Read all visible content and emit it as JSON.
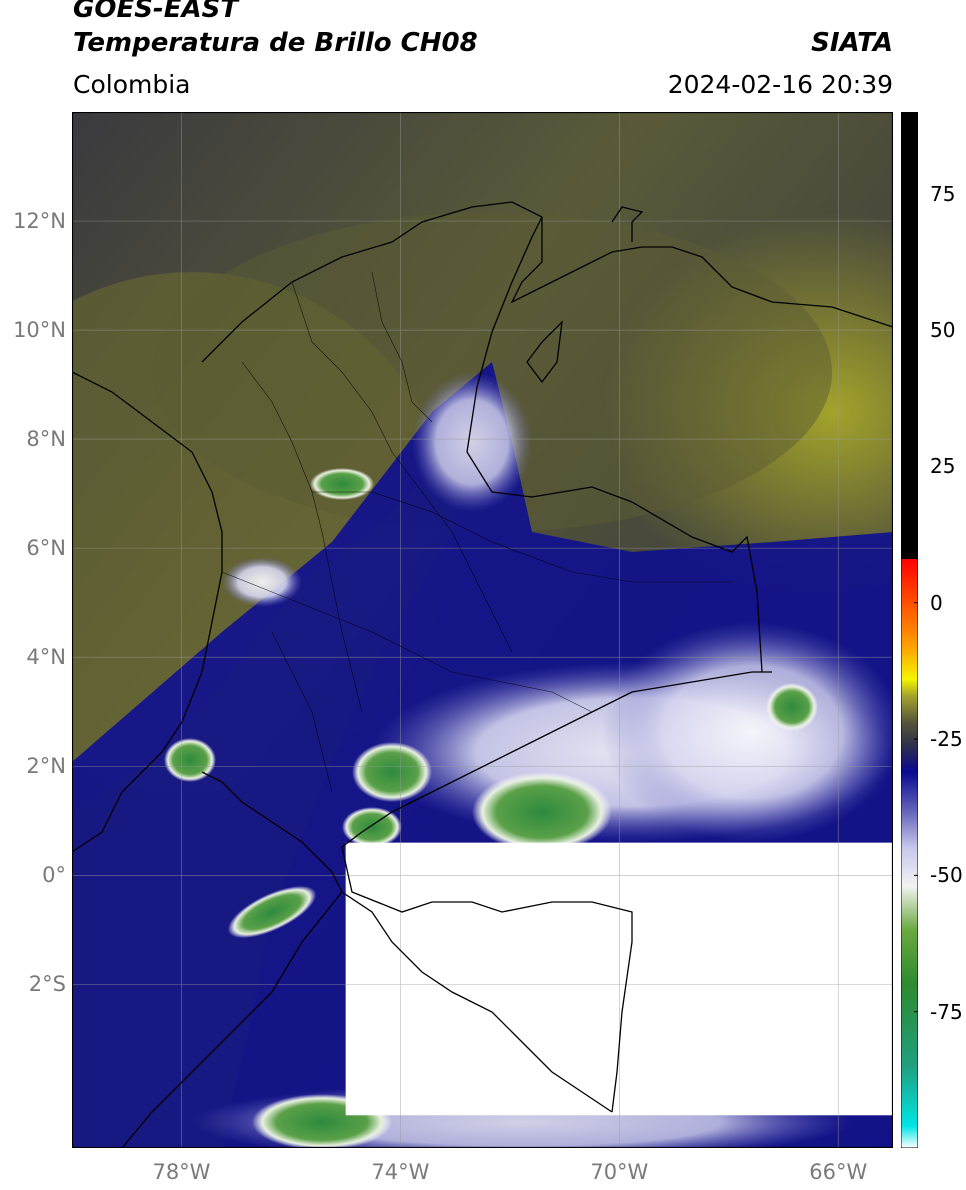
{
  "header": {
    "satellite": "GOES-EAST",
    "product": "Temperatura de Brillo CH08",
    "region": "Colombia",
    "org": "SIATA",
    "datetime": "2024-02-16 20:39"
  },
  "map": {
    "lon_range": [
      -80,
      -65
    ],
    "lat_range": [
      -5,
      14
    ],
    "lat_ticks": [
      {
        "value": 12,
        "label": "12°N"
      },
      {
        "value": 10,
        "label": "10°N"
      },
      {
        "value": 8,
        "label": "8°N"
      },
      {
        "value": 6,
        "label": "6°N"
      },
      {
        "value": 4,
        "label": "4°N"
      },
      {
        "value": 2,
        "label": "2°N"
      },
      {
        "value": 0,
        "label": "0°"
      },
      {
        "value": -2,
        "label": "2°S"
      }
    ],
    "lon_ticks": [
      {
        "value": -78,
        "label": "78°W"
      },
      {
        "value": -74,
        "label": "74°W"
      },
      {
        "value": -70,
        "label": "70°W"
      },
      {
        "value": -66,
        "label": "66°W"
      }
    ],
    "missing_data_region": {
      "lon": [
        -75,
        -65
      ],
      "lat": [
        -4.4,
        0.6
      ]
    }
  },
  "colorbar": {
    "range": [
      -100,
      90
    ],
    "ticks": [
      {
        "value": 75,
        "label": "75"
      },
      {
        "value": 50,
        "label": "50"
      },
      {
        "value": 25,
        "label": "25"
      },
      {
        "value": 0,
        "label": "0"
      },
      {
        "value": -25,
        "label": "-25"
      },
      {
        "value": -50,
        "label": "-50"
      },
      {
        "value": -75,
        "label": "-75"
      }
    ],
    "stops": [
      {
        "v": -100,
        "c": "#ffffff"
      },
      {
        "v": -96,
        "c": "#00e5e5"
      },
      {
        "v": -85,
        "c": "#20a080"
      },
      {
        "v": -70,
        "c": "#2e8a2e"
      },
      {
        "v": -60,
        "c": "#6aaa40"
      },
      {
        "v": -52,
        "c": "#f2f2f2"
      },
      {
        "v": -45,
        "c": "#c8c8ec"
      },
      {
        "v": -38,
        "c": "#6060b8"
      },
      {
        "v": -31,
        "c": "#0a0a90"
      },
      {
        "v": -26,
        "c": "#303048"
      },
      {
        "v": -22,
        "c": "#55553a"
      },
      {
        "v": -17,
        "c": "#a5a52e"
      },
      {
        "v": -14,
        "c": "#f5f500"
      },
      {
        "v": -8,
        "c": "#ffa000"
      },
      {
        "v": 0,
        "c": "#ff5000"
      },
      {
        "v": 8,
        "c": "#ff0000"
      },
      {
        "v": 8.01,
        "c": "#000000"
      },
      {
        "v": 90,
        "c": "#000000"
      }
    ]
  }
}
